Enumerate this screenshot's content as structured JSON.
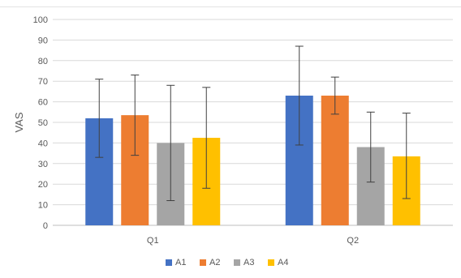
{
  "chart_data": {
    "type": "bar",
    "ylabel": "VAS",
    "xlabel": "",
    "ylim": [
      0,
      100
    ],
    "yticks": [
      0,
      10,
      20,
      30,
      40,
      50,
      60,
      70,
      80,
      90,
      100
    ],
    "grid": true,
    "legend_position": "bottom-center",
    "categories": [
      "Q1",
      "Q2"
    ],
    "series": [
      {
        "name": "A1",
        "color": "#4472C4",
        "values": [
          52,
          63
        ],
        "err_low": [
          33,
          39
        ],
        "err_high": [
          71,
          87
        ]
      },
      {
        "name": "A2",
        "color": "#ED7D31",
        "values": [
          53.5,
          63
        ],
        "err_low": [
          34,
          54
        ],
        "err_high": [
          73,
          72
        ]
      },
      {
        "name": "A3",
        "color": "#A5A5A5",
        "values": [
          40,
          38
        ],
        "err_low": [
          12,
          21
        ],
        "err_high": [
          68,
          55
        ]
      },
      {
        "name": "A4",
        "color": "#FFC000",
        "values": [
          42.5,
          33.5
        ],
        "err_low": [
          18,
          13
        ],
        "err_high": [
          67,
          54.5
        ]
      }
    ]
  }
}
